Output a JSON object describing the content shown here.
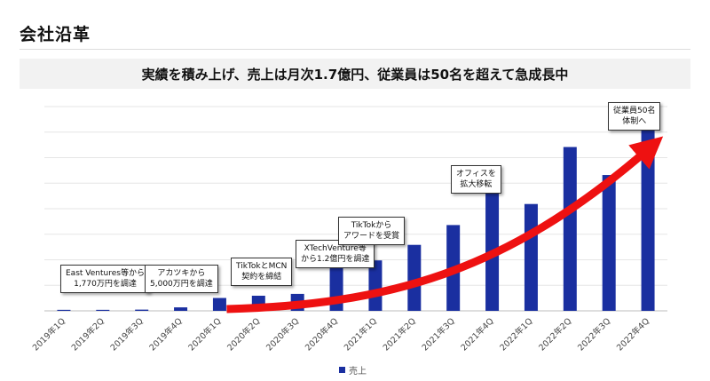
{
  "header": {
    "title": "会社沿革",
    "headline": "実績を積み上げ、売上は月次1.7億円、従業員は50名を超えて急成長中"
  },
  "callouts": [
    {
      "id": "ev",
      "line1": "East Ventures等から",
      "line2": "1,770万円を調達"
    },
    {
      "id": "akatsuki",
      "line1": "アカツキから",
      "line2": "5,000万円を調達"
    },
    {
      "id": "mcn",
      "line1": "TikTokとMCN",
      "line2": "契約を締結"
    },
    {
      "id": "xtech",
      "line1": "XTechVenture等",
      "line2": "から1.2億円を調達"
    },
    {
      "id": "award",
      "line1": "TikTokから",
      "line2": "アワードを受賞"
    },
    {
      "id": "office",
      "line1": "オフィスを",
      "line2": "拡大移転"
    },
    {
      "id": "staff",
      "line1": "従業員50名",
      "line2": "体制へ"
    }
  ],
  "legend": {
    "label": "売上",
    "color": "#1a2fa0"
  },
  "colors": {
    "bar": "#1a2fa0",
    "arrow": "#ee1111",
    "grid": "#e6e6e6"
  },
  "chart_data": {
    "type": "bar",
    "categories": [
      "2019年1Q",
      "2019年2Q",
      "2019年3Q",
      "2019年4Q",
      "2020年1Q",
      "2020年2Q",
      "2020年3Q",
      "2020年4Q",
      "2021年1Q",
      "2021年2Q",
      "2021年3Q",
      "2021年4Q",
      "2022年1Q",
      "2022年2Q",
      "2022年3Q",
      "2022年4Q"
    ],
    "series": [
      {
        "name": "売上",
        "values": [
          0.5,
          0.5,
          0.6,
          1.7,
          6.3,
          7.4,
          8.3,
          21.4,
          24.7,
          32.3,
          42.0,
          57.6,
          52.3,
          80.2,
          66.5,
          90.4
        ]
      }
    ],
    "ylim": [
      0,
      100
    ],
    "grid": true,
    "legend": "bottom-center",
    "xlabel": "",
    "ylabel": ""
  }
}
